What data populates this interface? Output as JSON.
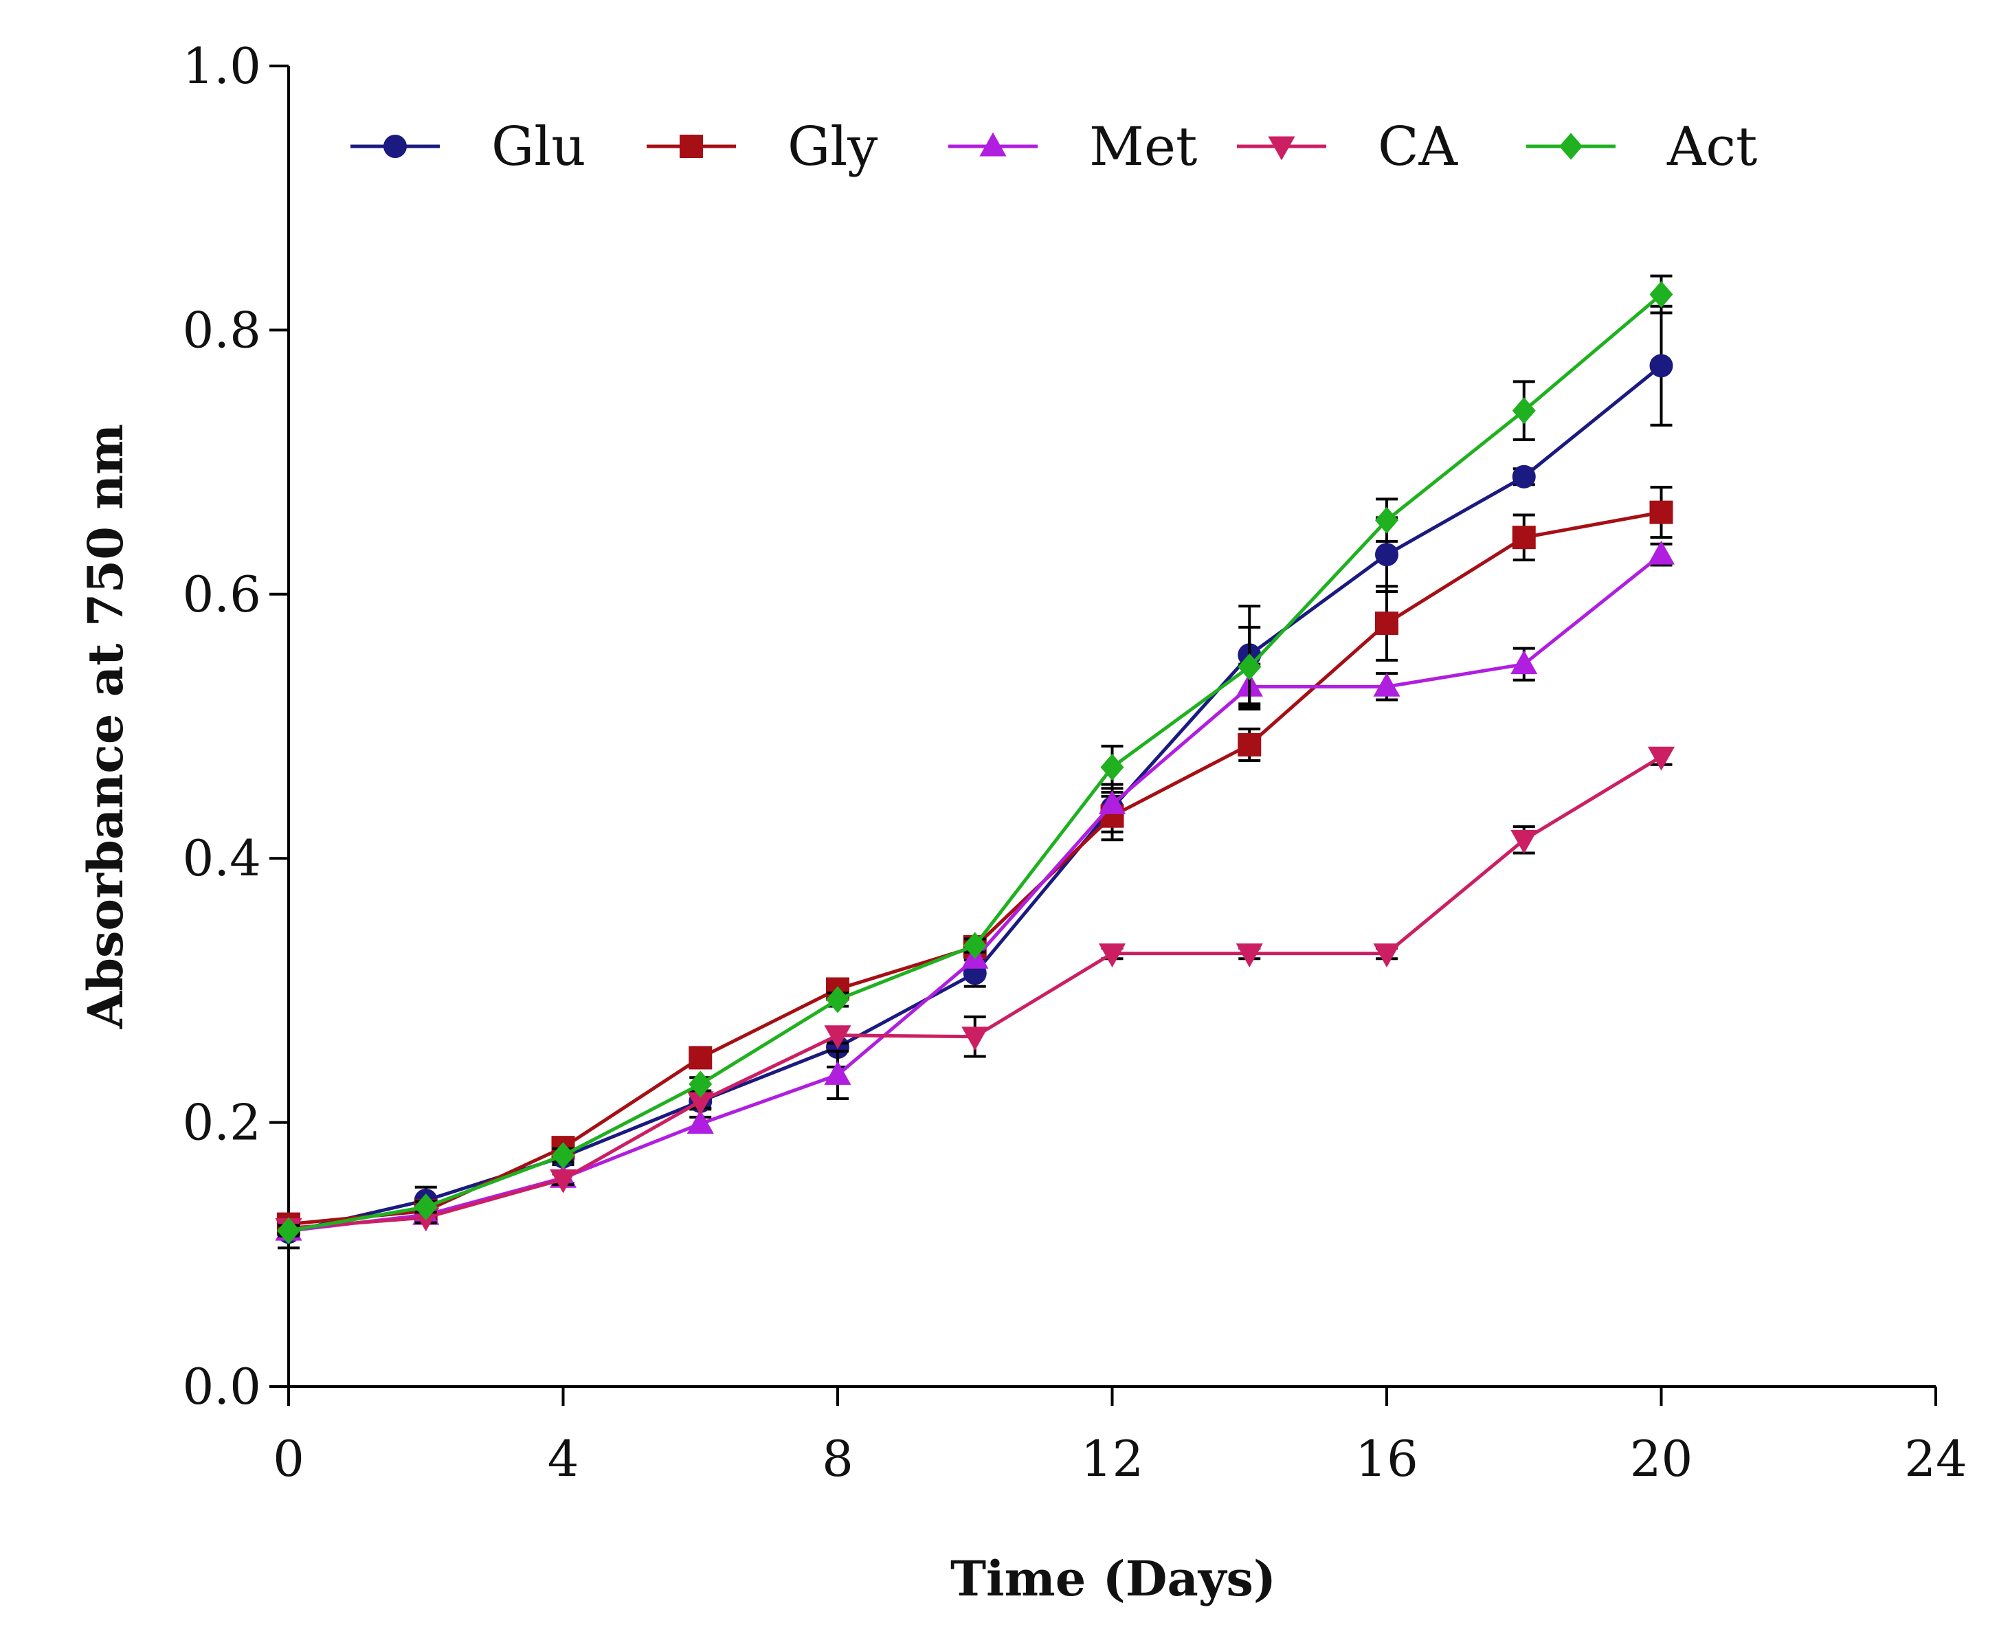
{
  "chart_data": {
    "type": "line",
    "title": "",
    "xlabel": "Time (Days)",
    "ylabel": "Absorbance at 750 nm",
    "xlim": [
      0,
      24
    ],
    "ylim": [
      0.0,
      1.0
    ],
    "xticks": [
      0,
      4,
      8,
      12,
      16,
      20,
      24
    ],
    "xtick_labels": [
      "0",
      "4",
      "8",
      "12",
      "16",
      "20",
      "24"
    ],
    "yticks": [
      0.0,
      0.2,
      0.4,
      0.6,
      0.8,
      1.0
    ],
    "ytick_labels": [
      "0.0",
      "0.2",
      "0.4",
      "0.6",
      "0.8",
      "1.0"
    ],
    "grid": false,
    "legend_position": "top",
    "x": [
      0,
      2,
      4,
      6,
      8,
      10,
      12,
      14,
      16,
      18,
      20
    ],
    "series": [
      {
        "name": "Glu",
        "color": "#1a1a80",
        "marker": "circle",
        "values": [
          0.117,
          0.141,
          0.174,
          0.216,
          0.257,
          0.313,
          0.438,
          0.554,
          0.63,
          0.689,
          0.773
        ],
        "errors": [
          0.012,
          0.01,
          0.006,
          0.006,
          0.015,
          0.01,
          0.018,
          0.037,
          0.028,
          0.006,
          0.045
        ]
      },
      {
        "name": "Gly",
        "color": "#a50f15",
        "marker": "square",
        "values": [
          0.123,
          0.133,
          0.181,
          0.249,
          0.301,
          0.333,
          0.432,
          0.486,
          0.578,
          0.643,
          0.662
        ],
        "errors": [
          0.005,
          0.004,
          0.004,
          0.005,
          0.005,
          0.006,
          0.018,
          0.012,
          0.028,
          0.017,
          0.019
        ]
      },
      {
        "name": "Met",
        "color": "#b01ee0",
        "marker": "triangle-up",
        "values": [
          0.118,
          0.13,
          0.158,
          0.199,
          0.236,
          0.324,
          0.441,
          0.53,
          0.53,
          0.547,
          0.63
        ],
        "errors": [
          0.004,
          0.004,
          0.004,
          0.005,
          0.018,
          0.006,
          0.006,
          0.017,
          0.01,
          0.012,
          0.008
        ]
      },
      {
        "name": "CA",
        "color": "#cc1f63",
        "marker": "triangle-down",
        "values": [
          0.12,
          0.128,
          0.157,
          0.216,
          0.266,
          0.265,
          0.328,
          0.328,
          0.328,
          0.414,
          0.477
        ],
        "errors": [
          0.004,
          0.004,
          0.004,
          0.005,
          0.006,
          0.015,
          0.004,
          0.004,
          0.004,
          0.01,
          0.006
        ]
      },
      {
        "name": "Act",
        "color": "#1fb11f",
        "marker": "diamond",
        "values": [
          0.118,
          0.136,
          0.175,
          0.229,
          0.293,
          0.334,
          0.469,
          0.545,
          0.656,
          0.739,
          0.827
        ],
        "errors": [
          0.004,
          0.004,
          0.005,
          0.005,
          0.005,
          0.005,
          0.016,
          0.03,
          0.016,
          0.022,
          0.014
        ]
      }
    ]
  }
}
